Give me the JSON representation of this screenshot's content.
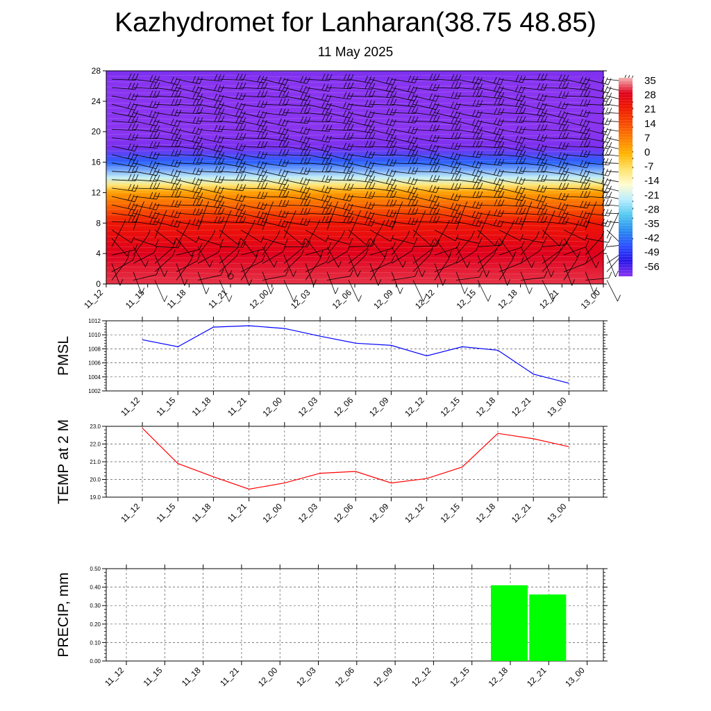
{
  "title": "Kazhydromet for Lanharan(38.75 48.85)",
  "subtitle": "11 May 2025",
  "chart_data": [
    {
      "type": "heatmap",
      "name": "upper-air",
      "time_labels": [
        "11_12",
        "11_15",
        "11_18",
        "11_21",
        "12_00",
        "12_03",
        "12_06",
        "12_09",
        "12_12",
        "12_15",
        "12_18",
        "12_21",
        "13_00"
      ],
      "y_ticks": [
        0,
        4,
        8,
        12,
        16,
        20,
        24,
        28
      ],
      "ylim": [
        0,
        28
      ],
      "colorbar_labels": [
        "35",
        "28",
        "21",
        "14",
        "7",
        "0",
        "-7",
        "-14",
        "-21",
        "-28",
        "-35",
        "-42",
        "-49",
        "-56"
      ],
      "colorbar_colors": [
        "#f4b6b6",
        "#e0001c",
        "#f01a00",
        "#f74a00",
        "#fd8000",
        "#ffb500",
        "#ffe36b",
        "#fffcd0",
        "#b8ecff",
        "#52c8f0",
        "#2a8cf0",
        "#2a50ff",
        "#2a15e8",
        "#8a35f0"
      ],
      "temperature_profile": [
        {
          "level": 0,
          "value": 30
        },
        {
          "level": 4,
          "value": 28
        },
        {
          "level": 8,
          "value": 22
        },
        {
          "level": 10,
          "value": 12
        },
        {
          "level": 12,
          "value": 3
        },
        {
          "level": 13,
          "value": -8
        },
        {
          "level": 14,
          "value": -20
        },
        {
          "level": 16,
          "value": -40
        },
        {
          "level": 18,
          "value": -55
        },
        {
          "level": 20,
          "value": -60
        },
        {
          "level": 23,
          "value": -58
        },
        {
          "level": 26,
          "value": -56
        },
        {
          "level": 28,
          "value": -55
        }
      ]
    },
    {
      "type": "line",
      "name": "PMSL",
      "ylabel": "PMSL",
      "x": [
        "11_12",
        "11_15",
        "11_18",
        "11_21",
        "12_00",
        "12_03",
        "12_06",
        "12_09",
        "12_12",
        "12_15",
        "12_18",
        "12_21",
        "13_00"
      ],
      "series": [
        {
          "values": [
            1009.3,
            1008.3,
            1011.1,
            1011.3,
            1010.9,
            1009.8,
            1008.8,
            1008.5,
            1007.0,
            1008.3,
            1007.8,
            1004.4,
            1003.1
          ],
          "color": "#0000ff"
        }
      ],
      "ylim": [
        1002,
        1012
      ],
      "y_ticks": [
        1002,
        1004,
        1006,
        1008,
        1010,
        1012
      ],
      "y_tick_labels": [
        "1002",
        "1004",
        "1006",
        "1008",
        "1010",
        "1012"
      ],
      "grid": true
    },
    {
      "type": "line",
      "name": "TEMP at 2 M",
      "ylabel": "TEMP at 2 M",
      "x": [
        "11_12",
        "11_15",
        "11_18",
        "11_21",
        "12_00",
        "12_03",
        "12_06",
        "12_09",
        "12_12",
        "12_15",
        "12_18",
        "12_21",
        "13_00"
      ],
      "series": [
        {
          "values": [
            22.9,
            20.9,
            20.15,
            19.45,
            19.8,
            20.35,
            20.45,
            19.8,
            20.05,
            20.7,
            22.6,
            22.3,
            21.85
          ],
          "color": "#ff0000"
        }
      ],
      "ylim": [
        19.0,
        23.0
      ],
      "y_ticks": [
        19.0,
        20.0,
        21.0,
        22.0,
        23.0
      ],
      "y_tick_labels": [
        "19.0",
        "20.0",
        "21.0",
        "22.0",
        "23.0"
      ],
      "grid": true
    },
    {
      "type": "bar",
      "name": "PRECIP, mm",
      "ylabel": "PRECIP, mm",
      "categories": [
        "11_12",
        "11_15",
        "11_18",
        "11_21",
        "12_00",
        "12_03",
        "12_06",
        "12_09",
        "12_12",
        "12_15",
        "12_18",
        "12_21",
        "13_00"
      ],
      "values": [
        0,
        0,
        0,
        0,
        0,
        0,
        0,
        0,
        0,
        0,
        0.41,
        0.36,
        0
      ],
      "color": "#00ff00",
      "ylim": [
        0,
        0.5
      ],
      "y_ticks": [
        0,
        0.1,
        0.2,
        0.3,
        0.4,
        0.5
      ],
      "y_tick_labels": [
        "0.00",
        "0.10",
        "0.20",
        "0.30",
        "0.40",
        "0.50"
      ],
      "grid": true
    }
  ]
}
